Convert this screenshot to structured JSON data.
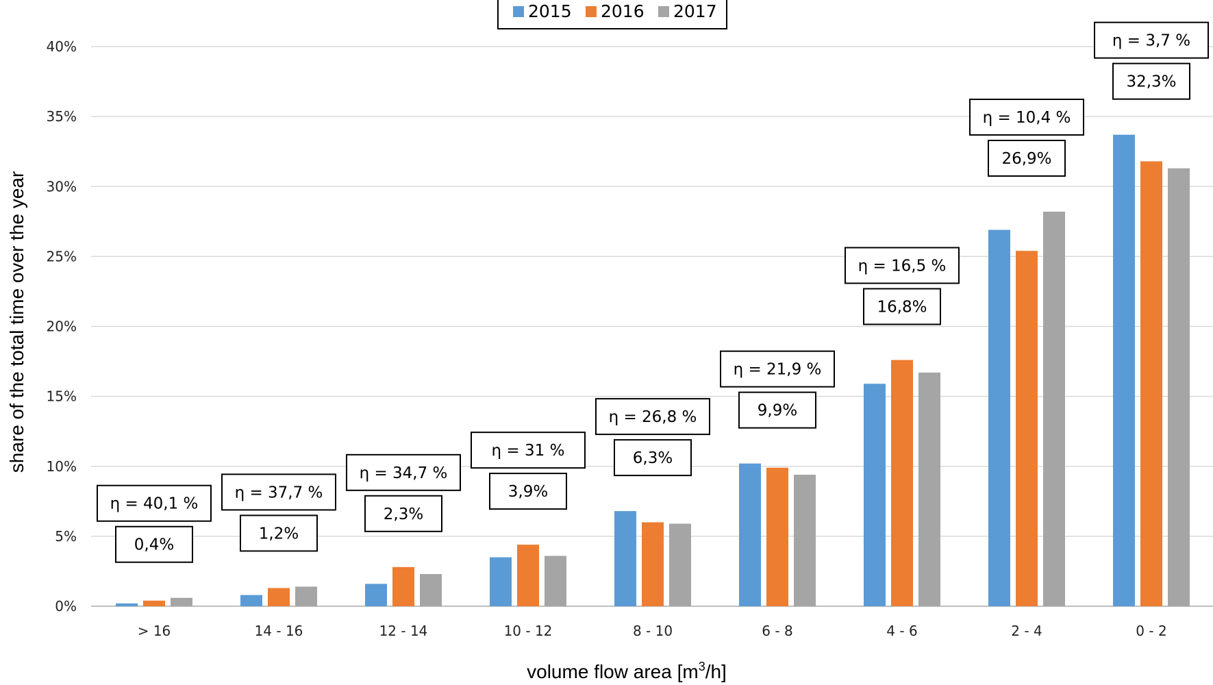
{
  "chart_data": {
    "type": "bar",
    "xlabel": "volume flow area [m",
    "xlabel_sup": "3",
    "xlabel_tail": "/h]",
    "ylabel": "share of the total time over the year",
    "ylim": [
      0,
      40
    ],
    "yticks": [
      0,
      5,
      10,
      15,
      20,
      25,
      30,
      35,
      40
    ],
    "ytick_labels": [
      "0%",
      "5%",
      "10%",
      "15%",
      "20%",
      "25%",
      "30%",
      "35%",
      "40%"
    ],
    "grid": true,
    "legend_position": "top-center",
    "categories": [
      "> 16",
      "14 - 16",
      "12 - 14",
      "10 - 12",
      "8 - 10",
      "6 - 8",
      "4 - 6",
      "2 - 4",
      "0 - 2"
    ],
    "series": [
      {
        "name": "2015",
        "color": "#5b9bd5",
        "values": [
          0.2,
          0.8,
          1.6,
          3.5,
          6.8,
          10.2,
          15.9,
          26.9,
          33.7
        ]
      },
      {
        "name": "2016",
        "color": "#ed7d31",
        "values": [
          0.4,
          1.3,
          2.8,
          4.4,
          6.0,
          9.9,
          17.6,
          25.4,
          31.8
        ]
      },
      {
        "name": "2017",
        "color": "#a5a5a5",
        "values": [
          0.6,
          1.4,
          2.3,
          3.6,
          5.9,
          9.4,
          16.7,
          28.2,
          31.3
        ]
      }
    ],
    "annotations": [
      {
        "eta": "η = 40,1 %",
        "avg": "0,4%"
      },
      {
        "eta": "η = 37,7 %",
        "avg": "1,2%"
      },
      {
        "eta": "η = 34,7 %",
        "avg": "2,3%"
      },
      {
        "eta": "η = 31 %",
        "avg": "3,9%"
      },
      {
        "eta": "η = 26,8 %",
        "avg": "6,3%"
      },
      {
        "eta": "η = 21,9 %",
        "avg": "9,9%"
      },
      {
        "eta": "η = 16,5 %",
        "avg": "16,8%"
      },
      {
        "eta": "η = 10,4 %",
        "avg": "26,9%"
      },
      {
        "eta": "η = 3,7 %",
        "avg": "32,3%"
      }
    ]
  }
}
